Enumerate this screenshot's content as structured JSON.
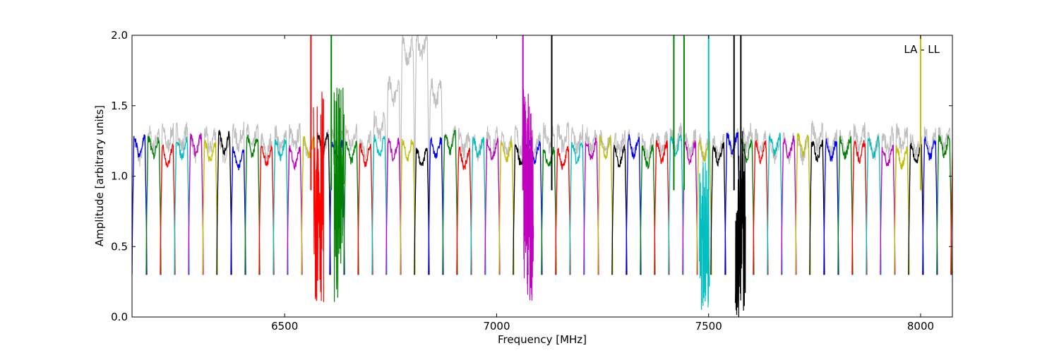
{
  "chart_data": {
    "type": "line",
    "title": "",
    "annotation": "LA - LL",
    "xlabel": "Frequency [MHz]",
    "ylabel": "Amplitude [arbitrary units]",
    "xlim": [
      6140,
      8075
    ],
    "ylim": [
      0.0,
      2.0
    ],
    "xticks": [
      6500,
      7000,
      7500,
      8000
    ],
    "xtick_labels": [
      "6500",
      "7000",
      "7500",
      "8000"
    ],
    "yticks": [
      0.0,
      0.5,
      1.0,
      1.5,
      2.0
    ],
    "ytick_labels": [
      "0.0",
      "0.5",
      "1.0",
      "1.5",
      "2.0"
    ],
    "grid": false,
    "legend": "none",
    "background_series": {
      "name": "",
      "color": "#bfbfbf"
    },
    "band_colors": [
      "#0000ff",
      "#008000",
      "#ff0000",
      "#00bfbf",
      "#bf00bf",
      "#bfbf00",
      "#000000"
    ],
    "band_count": 60,
    "band_start_mhz": 6140,
    "band_width_mhz": 33.3,
    "band_floor": 0.3,
    "band_level": 1.18,
    "features": [
      {
        "x": 6580,
        "min": 0.1,
        "max": 1.65,
        "color": "#ff0000"
      },
      {
        "x": 6628,
        "min": 0.1,
        "max": 1.63,
        "color": "#008000"
      },
      {
        "x": 7075,
        "min": 0.1,
        "max": 1.62,
        "color": "#bf00bf"
      },
      {
        "x": 7490,
        "min": 0.05,
        "max": 1.1,
        "color": "#00bfbf"
      },
      {
        "x": 7575,
        "min": 0.0,
        "max": 1.35,
        "color": "#000000"
      }
    ],
    "spikes": [
      {
        "x": 6562,
        "color": "#ff0000"
      },
      {
        "x": 6610,
        "color": "#008000"
      },
      {
        "x": 7062,
        "color": "#bf00bf"
      },
      {
        "x": 7130,
        "color": "#000000"
      },
      {
        "x": 7418,
        "color": "#008000"
      },
      {
        "x": 7442,
        "color": "#008000"
      },
      {
        "x": 7500,
        "color": "#00bfbf"
      },
      {
        "x": 7560,
        "color": "#000000"
      },
      {
        "x": 7576,
        "color": "#000000"
      },
      {
        "x": 8000,
        "color": "#bfbf00"
      }
    ],
    "background_peak": {
      "x": 6805,
      "max": 2.0
    }
  }
}
